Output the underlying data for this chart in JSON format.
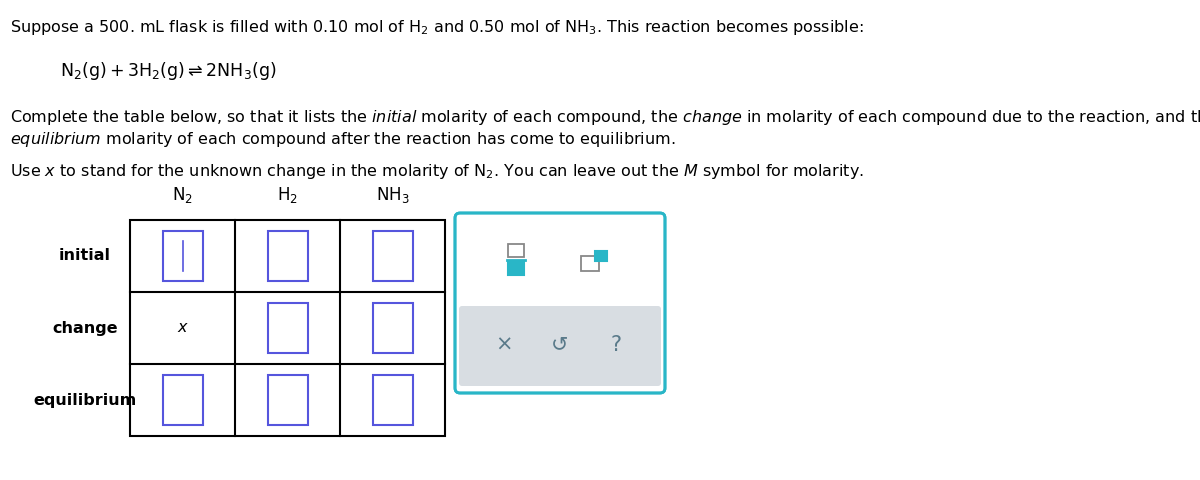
{
  "bg_color": "#ffffff",
  "text_color": "#000000",
  "table_line_color": "#000000",
  "input_box_color": "#5555dd",
  "panel_border_color": "#29B6C7",
  "panel_top_bg": "#ffffff",
  "panel_bot_bg": "#e0e4e8",
  "font_size_text": 11.5,
  "font_size_table_header": 12,
  "font_size_table_row": 11.5,
  "col_headers": [
    "N₂",
    "H₂",
    "NH₃"
  ],
  "row_headers": [
    "initial",
    "change",
    "equilibrium"
  ],
  "cell_change_n2": "x"
}
